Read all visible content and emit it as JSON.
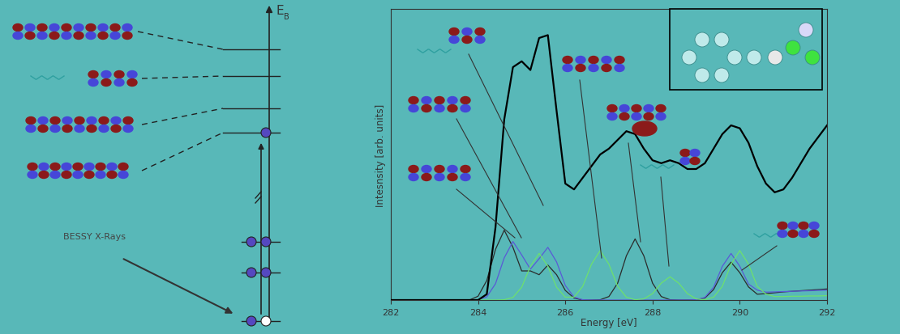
{
  "chart_data": {
    "type": "line",
    "x_label": "Energy [eV]",
    "y_label": "Intesnsity [arb. units]",
    "x": [
      282.0,
      282.2,
      282.4,
      282.6,
      282.8,
      283.0,
      283.2,
      283.4,
      283.6,
      283.8,
      284.0,
      284.2,
      284.4,
      284.6,
      284.8,
      285.0,
      285.2,
      285.4,
      285.6,
      285.8,
      286.0,
      286.2,
      286.4,
      286.6,
      286.8,
      287.0,
      287.2,
      287.4,
      287.6,
      287.8,
      288.0,
      288.2,
      288.4,
      288.6,
      288.8,
      289.0,
      289.2,
      289.4,
      289.6,
      289.8,
      290.0,
      290.2,
      290.4,
      290.6,
      290.8,
      291.0,
      291.2,
      291.4,
      291.6,
      291.8,
      292.0
    ],
    "series": [
      {
        "color": "#000000",
        "values": [
          0,
          0,
          0,
          0,
          0,
          0,
          0,
          0,
          0,
          0,
          0,
          2,
          25,
          62,
          80,
          82,
          79,
          90,
          91,
          65,
          40,
          38,
          42,
          46,
          50,
          52,
          55,
          58,
          57,
          52,
          48,
          47,
          48,
          47,
          45,
          45,
          47,
          52,
          57,
          60,
          59,
          54,
          46,
          40,
          37,
          38,
          42,
          47,
          52,
          56,
          60
        ]
      },
      {
        "color": "#2b2b2b",
        "values": [
          0,
          0,
          0,
          0,
          0,
          0,
          0,
          0,
          0,
          0,
          1.3,
          6.7,
          17.4,
          24,
          18.1,
          10.0,
          10.0,
          8.7,
          12,
          8.7,
          3.3,
          0.7,
          0,
          0,
          0.1,
          1.2,
          5.8,
          15.2,
          21,
          15.2,
          5.8,
          1.2,
          0.1,
          0,
          0,
          0.1,
          0.7,
          3.6,
          9.4,
          13,
          9.4,
          4.5,
          2.0,
          2.2,
          2.5,
          2.8,
          3.0,
          3.2,
          3.4,
          3.6,
          3.8
        ]
      },
      {
        "color": "#5a5ad6",
        "values": [
          0,
          0,
          0,
          0,
          0,
          0,
          0,
          0,
          0,
          0,
          0.1,
          1.1,
          5.6,
          14.5,
          20.1,
          15.5,
          10.6,
          14.2,
          18.1,
          13.1,
          5.0,
          1.0,
          0.1,
          0,
          0,
          0,
          0,
          0,
          0,
          0,
          0,
          0,
          0,
          0,
          0,
          0.1,
          0.9,
          4.4,
          11.6,
          16,
          11.6,
          5.5,
          3.4,
          2.7,
          2.8,
          2.9,
          3.0,
          3.1,
          3.2,
          3.3,
          3.4
        ]
      },
      {
        "color": "#6ee06e",
        "values": [
          0,
          0,
          0,
          0,
          0,
          0,
          0,
          0,
          0,
          0,
          0,
          0,
          0,
          0.1,
          0.9,
          4.4,
          11.6,
          16,
          11.6,
          4.4,
          1.0,
          1.0,
          4.7,
          12.3,
          17,
          12.3,
          4.7,
          1.0,
          0.1,
          0.4,
          2.2,
          5.8,
          8,
          5.8,
          2.2,
          0.4,
          0.1,
          1.0,
          4.7,
          12.3,
          17,
          12.3,
          4.7,
          2.0,
          1.2,
          1.2,
          1.3,
          1.3,
          1.4,
          1.4,
          1.5
        ]
      }
    ],
    "xlim": [
      282,
      292
    ],
    "xticks": [
      282,
      284,
      286,
      288,
      290,
      292
    ],
    "ylim": [
      0,
      100
    ],
    "tick_labels": "x",
    "grid": false
  },
  "diagram": {
    "energy_axis": "E",
    "energy_axis_subscript": "B",
    "source_label": "BESSY X-Rays"
  }
}
